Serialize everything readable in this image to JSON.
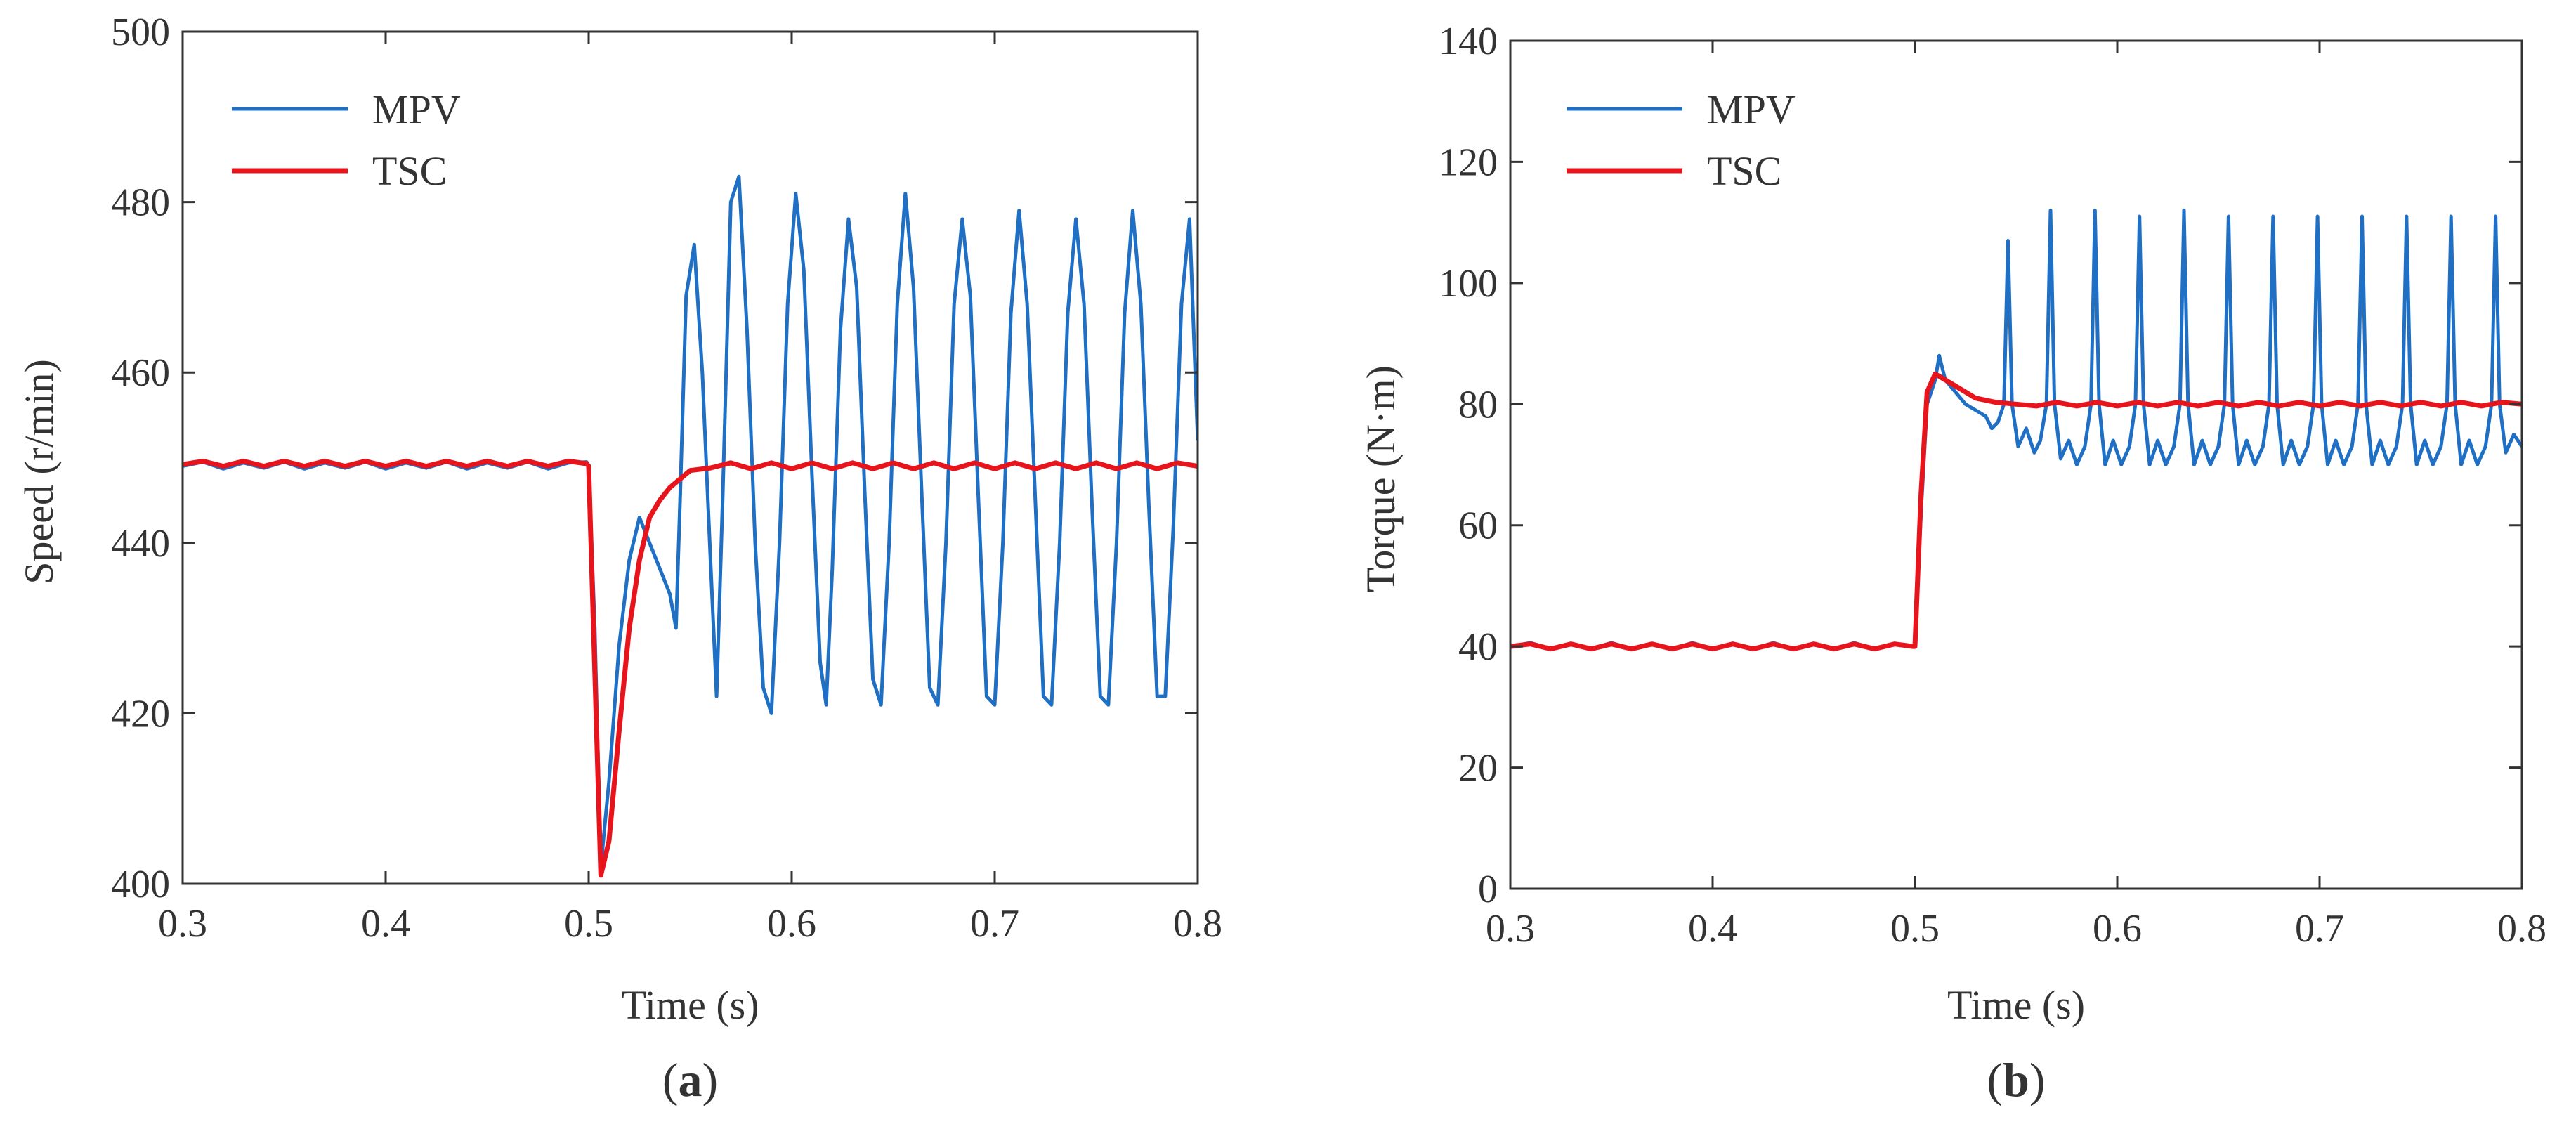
{
  "colors": {
    "mpv": "#1f6fc5",
    "tsc": "#e8141c",
    "axis": "#333333",
    "text": "#333333"
  },
  "chart_data": [
    {
      "type": "line",
      "panel": "a",
      "caption_letter": "a",
      "xlabel": "Time (s)",
      "ylabel": "Speed (r/min)",
      "xlim": [
        0.3,
        0.8
      ],
      "ylim": [
        400,
        500
      ],
      "xticks": [
        0.3,
        0.4,
        0.5,
        0.6,
        0.7,
        0.8
      ],
      "yticks": [
        400,
        420,
        440,
        460,
        480,
        500
      ],
      "xtick_labels": [
        "0.3",
        "0.4",
        "0.5",
        "0.6",
        "0.7",
        "0.8"
      ],
      "ytick_labels": [
        "400",
        "420",
        "440",
        "460",
        "480",
        "500"
      ],
      "legend": {
        "position": "top-left",
        "entries": [
          "MPV",
          "TSC"
        ]
      },
      "series": [
        {
          "name": "MPV",
          "color_key": "mpv",
          "x": [
            0.3,
            0.31,
            0.32,
            0.33,
            0.34,
            0.35,
            0.36,
            0.37,
            0.38,
            0.39,
            0.4,
            0.41,
            0.42,
            0.43,
            0.44,
            0.45,
            0.46,
            0.47,
            0.48,
            0.49,
            0.499,
            0.5,
            0.503,
            0.506,
            0.51,
            0.515,
            0.52,
            0.525,
            0.53,
            0.535,
            0.54,
            0.543,
            0.545,
            0.548,
            0.552,
            0.556,
            0.56,
            0.563,
            0.566,
            0.57,
            0.574,
            0.578,
            0.582,
            0.586,
            0.59,
            0.594,
            0.598,
            0.602,
            0.606,
            0.61,
            0.614,
            0.617,
            0.62,
            0.624,
            0.628,
            0.632,
            0.636,
            0.64,
            0.644,
            0.648,
            0.652,
            0.656,
            0.66,
            0.664,
            0.668,
            0.672,
            0.676,
            0.68,
            0.684,
            0.688,
            0.692,
            0.696,
            0.7,
            0.704,
            0.708,
            0.712,
            0.716,
            0.72,
            0.724,
            0.728,
            0.732,
            0.736,
            0.74,
            0.744,
            0.748,
            0.752,
            0.756,
            0.76,
            0.764,
            0.768,
            0.772,
            0.776,
            0.78,
            0.784,
            0.788,
            0.792,
            0.796,
            0.8
          ],
          "y": [
            449,
            449.5,
            448.7,
            449.4,
            448.8,
            449.5,
            448.7,
            449.4,
            448.8,
            449.5,
            448.7,
            449.4,
            448.8,
            449.5,
            448.7,
            449.4,
            448.8,
            449.5,
            448.7,
            449.4,
            449.5,
            449,
            430,
            402,
            412,
            428,
            438,
            443,
            440,
            437,
            434,
            430,
            445,
            469,
            475,
            460,
            438,
            422,
            445,
            480,
            483,
            465,
            440,
            423,
            420,
            440,
            468,
            481,
            472,
            448,
            426,
            421,
            437,
            465,
            478,
            470,
            446,
            424,
            421,
            440,
            468,
            481,
            470,
            446,
            423,
            421,
            440,
            468,
            478,
            469,
            445,
            422,
            421,
            440,
            467,
            479,
            468,
            445,
            422,
            421,
            440,
            467,
            478,
            468,
            444,
            422,
            421,
            440,
            467,
            479,
            468,
            444,
            422,
            422,
            442,
            468,
            478,
            452
          ]
        },
        {
          "name": "TSC",
          "color_key": "tsc",
          "x": [
            0.3,
            0.31,
            0.32,
            0.33,
            0.34,
            0.35,
            0.36,
            0.37,
            0.38,
            0.39,
            0.4,
            0.41,
            0.42,
            0.43,
            0.44,
            0.45,
            0.46,
            0.47,
            0.48,
            0.49,
            0.499,
            0.5,
            0.503,
            0.506,
            0.51,
            0.515,
            0.52,
            0.525,
            0.53,
            0.535,
            0.54,
            0.545,
            0.55,
            0.56,
            0.57,
            0.58,
            0.59,
            0.6,
            0.61,
            0.62,
            0.63,
            0.64,
            0.65,
            0.66,
            0.67,
            0.68,
            0.69,
            0.7,
            0.71,
            0.72,
            0.73,
            0.74,
            0.75,
            0.76,
            0.77,
            0.78,
            0.79,
            0.8
          ],
          "y": [
            449.2,
            449.6,
            449.0,
            449.6,
            449.0,
            449.6,
            449.0,
            449.6,
            449.0,
            449.6,
            449.0,
            449.6,
            449.0,
            449.6,
            449.0,
            449.6,
            449.0,
            449.6,
            449.0,
            449.6,
            449.3,
            449,
            425,
            401,
            405,
            418,
            430,
            438,
            443,
            445,
            446.5,
            447.5,
            448.5,
            448.8,
            449.4,
            448.7,
            449.4,
            448.7,
            449.4,
            448.7,
            449.4,
            448.7,
            449.4,
            448.7,
            449.4,
            448.7,
            449.4,
            448.7,
            449.4,
            448.7,
            449.4,
            448.7,
            449.4,
            448.7,
            449.4,
            448.7,
            449.4,
            449
          ]
        }
      ]
    },
    {
      "type": "line",
      "panel": "b",
      "caption_letter": "b",
      "xlabel": "Time (s)",
      "ylabel": "Torque (N·m)",
      "xlim": [
        0.3,
        0.8
      ],
      "ylim": [
        0,
        140
      ],
      "xticks": [
        0.3,
        0.4,
        0.5,
        0.6,
        0.7,
        0.8
      ],
      "yticks": [
        0,
        20,
        40,
        60,
        80,
        100,
        120,
        140
      ],
      "xtick_labels": [
        "0.3",
        "0.4",
        "0.5",
        "0.6",
        "0.7",
        "0.8"
      ],
      "ytick_labels": [
        "0",
        "20",
        "40",
        "60",
        "80",
        "100",
        "120",
        "140"
      ],
      "legend": {
        "position": "top-left",
        "entries": [
          "MPV",
          "TSC"
        ]
      },
      "series": [
        {
          "name": "MPV",
          "color_key": "mpv",
          "x": [
            0.3,
            0.31,
            0.32,
            0.33,
            0.34,
            0.35,
            0.36,
            0.37,
            0.38,
            0.39,
            0.4,
            0.41,
            0.42,
            0.43,
            0.44,
            0.45,
            0.46,
            0.47,
            0.48,
            0.49,
            0.499,
            0.5,
            0.503,
            0.506,
            0.51,
            0.512,
            0.515,
            0.52,
            0.525,
            0.53,
            0.535,
            0.538,
            0.541,
            0.544,
            0.546,
            0.548,
            0.551,
            0.555,
            0.559,
            0.562,
            0.565,
            0.567,
            0.569,
            0.572,
            0.576,
            0.58,
            0.584,
            0.587,
            0.589,
            0.591,
            0.594,
            0.598,
            0.602,
            0.606,
            0.609,
            0.611,
            0.613,
            0.616,
            0.62,
            0.624,
            0.628,
            0.631,
            0.633,
            0.635,
            0.638,
            0.642,
            0.646,
            0.65,
            0.653,
            0.655,
            0.657,
            0.66,
            0.664,
            0.668,
            0.672,
            0.675,
            0.677,
            0.679,
            0.682,
            0.686,
            0.69,
            0.694,
            0.697,
            0.699,
            0.701,
            0.704,
            0.708,
            0.712,
            0.716,
            0.719,
            0.721,
            0.723,
            0.726,
            0.73,
            0.734,
            0.738,
            0.741,
            0.743,
            0.745,
            0.748,
            0.752,
            0.756,
            0.76,
            0.763,
            0.765,
            0.767,
            0.77,
            0.774,
            0.778,
            0.782,
            0.785,
            0.787,
            0.789,
            0.792,
            0.796,
            0.8
          ],
          "y": [
            40,
            40.6,
            39.6,
            40.5,
            39.6,
            40.6,
            39.6,
            40.5,
            39.6,
            40.6,
            39.6,
            40.5,
            39.6,
            40.6,
            39.6,
            40.5,
            39.6,
            40.6,
            39.6,
            40.5,
            40,
            40,
            62,
            80,
            84,
            88,
            84,
            82,
            80,
            79,
            78,
            76,
            77,
            80,
            107,
            80,
            73,
            76,
            72,
            74,
            80,
            112,
            80,
            71,
            74,
            70,
            73,
            80,
            112,
            80,
            70,
            74,
            70,
            73,
            80,
            111,
            80,
            70,
            74,
            70,
            73,
            80,
            112,
            80,
            70,
            74,
            70,
            73,
            80,
            111,
            80,
            70,
            74,
            70,
            73,
            80,
            111,
            80,
            70,
            74,
            70,
            73,
            80,
            111,
            80,
            70,
            74,
            70,
            73,
            80,
            111,
            80,
            70,
            74,
            70,
            73,
            80,
            111,
            80,
            70,
            74,
            70,
            73,
            80,
            111,
            80,
            70,
            74,
            70,
            73,
            80,
            111,
            80,
            72,
            75,
            73
          ]
        },
        {
          "name": "TSC",
          "color_key": "tsc",
          "x": [
            0.3,
            0.31,
            0.32,
            0.33,
            0.34,
            0.35,
            0.36,
            0.37,
            0.38,
            0.39,
            0.4,
            0.41,
            0.42,
            0.43,
            0.44,
            0.45,
            0.46,
            0.47,
            0.48,
            0.49,
            0.499,
            0.5,
            0.503,
            0.506,
            0.51,
            0.515,
            0.52,
            0.525,
            0.53,
            0.54,
            0.55,
            0.56,
            0.57,
            0.58,
            0.59,
            0.6,
            0.61,
            0.62,
            0.63,
            0.64,
            0.65,
            0.66,
            0.67,
            0.68,
            0.69,
            0.7,
            0.71,
            0.72,
            0.73,
            0.74,
            0.75,
            0.76,
            0.77,
            0.78,
            0.79,
            0.8
          ],
          "y": [
            40,
            40.4,
            39.6,
            40.4,
            39.6,
            40.4,
            39.6,
            40.4,
            39.6,
            40.4,
            39.6,
            40.4,
            39.6,
            40.4,
            39.6,
            40.4,
            39.6,
            40.4,
            39.6,
            40.4,
            40,
            40,
            65,
            82,
            85,
            84,
            83,
            82,
            81,
            80.3,
            80.0,
            79.7,
            80.3,
            79.7,
            80.3,
            79.7,
            80.3,
            79.7,
            80.3,
            79.7,
            80.3,
            79.7,
            80.3,
            79.7,
            80.3,
            79.7,
            80.3,
            79.7,
            80.3,
            79.7,
            80.3,
            79.7,
            80.3,
            79.7,
            80.3,
            80
          ]
        }
      ]
    }
  ]
}
